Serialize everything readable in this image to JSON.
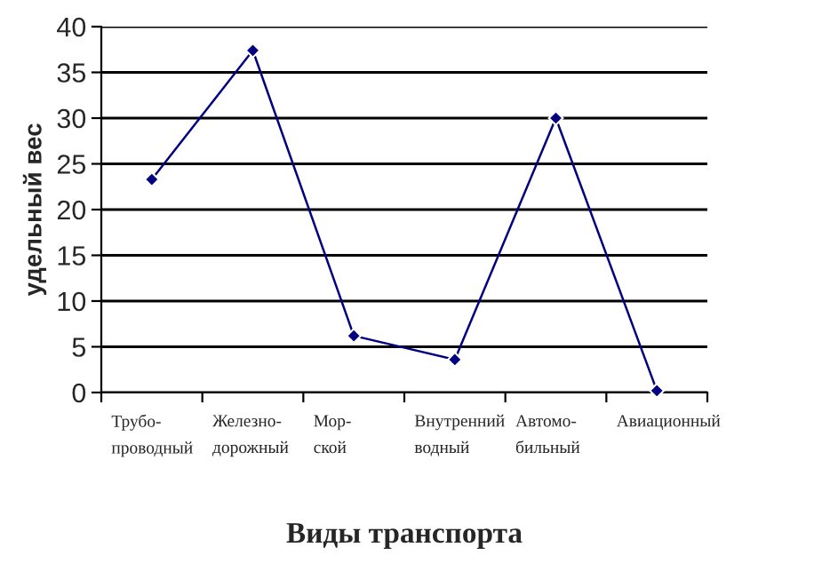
{
  "chart_data": {
    "type": "line",
    "xlabel": "Виды транспорта",
    "ylabel": "удельный вес",
    "categories": [
      "Трубо-\nпроводный",
      "Железно-\nдорожный",
      "Мор-\nской",
      "Внутренний\nводный",
      "Автомо-\nбильный",
      "Авиационный"
    ],
    "series": [
      {
        "color": "#000080",
        "values": [
          23.3,
          37.4,
          6.2,
          3.6,
          30.0,
          0.2
        ]
      }
    ],
    "ylim": [
      0,
      40
    ],
    "yticks": [
      0,
      5,
      10,
      15,
      20,
      25,
      30,
      35,
      40
    ],
    "grid": "y",
    "marker": "diamond",
    "line_style": "solid",
    "legend": false
  }
}
